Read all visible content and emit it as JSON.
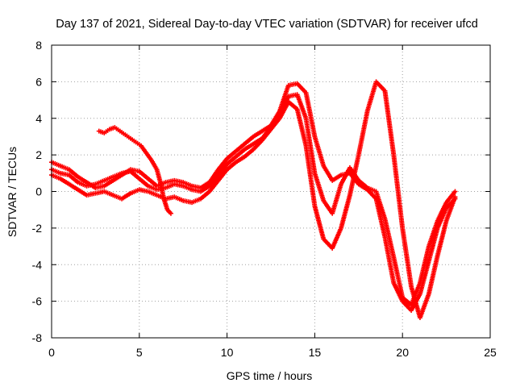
{
  "chart_data": {
    "type": "scatter",
    "title": "Day 137 of 2021, Sidereal Day-to-day VTEC variation (SDTVAR) for receiver ufcd",
    "xlabel": "GPS time / hours",
    "ylabel": "SDTVAR / TECUs",
    "xlim": [
      0,
      25
    ],
    "ylim": [
      -8,
      8
    ],
    "xticks": [
      0,
      5,
      10,
      15,
      20,
      25
    ],
    "yticks": [
      -8,
      -6,
      -4,
      -2,
      0,
      2,
      4,
      6,
      8
    ],
    "grid": true,
    "marker": "+",
    "color": "#ff0000",
    "series": [
      {
        "x": [
          0.0,
          0.5,
          1.0,
          1.5,
          2.0,
          2.5,
          3.0,
          3.5,
          4.0,
          4.5,
          5.0,
          5.5,
          6.0,
          6.5,
          7.0,
          7.5,
          8.0,
          8.5,
          9.0,
          9.5,
          10.0,
          10.5,
          11.0,
          11.5,
          12.0,
          12.5,
          13.0,
          13.5,
          14.0,
          14.5,
          15.0,
          15.5,
          16.0,
          16.5,
          17.0,
          17.5,
          18.0,
          18.5,
          19.0,
          19.5,
          20.0,
          20.5,
          21.0,
          21.5,
          22.0,
          22.5,
          23.0
        ],
        "y": [
          1.6,
          1.4,
          1.2,
          0.8,
          0.5,
          0.2,
          0.3,
          0.6,
          0.9,
          1.2,
          1.1,
          0.7,
          0.3,
          0.5,
          0.6,
          0.5,
          0.3,
          0.2,
          0.5,
          1.2,
          1.8,
          2.2,
          2.6,
          3.0,
          3.3,
          3.6,
          4.4,
          5.8,
          5.9,
          5.4,
          3.0,
          1.4,
          0.6,
          0.9,
          1.0,
          0.4,
          0.1,
          -0.4,
          -2.5,
          -5.0,
          -6.0,
          -6.5,
          -5.6,
          -3.8,
          -2.0,
          -0.9,
          -0.4
        ]
      },
      {
        "x": [
          0.0,
          0.5,
          1.0,
          1.5,
          2.0,
          2.5,
          3.0,
          3.5,
          4.0,
          4.5,
          5.0,
          5.5,
          6.0,
          6.5,
          7.0,
          7.5,
          8.0,
          8.5,
          9.0,
          9.5,
          10.0,
          10.5,
          11.0,
          11.5,
          12.0,
          12.5,
          13.0,
          13.5,
          14.0,
          14.5,
          15.0,
          15.5,
          16.0,
          16.5,
          17.0,
          17.5,
          18.0,
          18.5,
          19.0,
          19.5,
          20.0,
          20.5,
          21.0,
          21.5,
          22.0,
          22.5,
          23.0
        ],
        "y": [
          0.9,
          0.7,
          0.4,
          0.1,
          -0.2,
          -0.1,
          0.0,
          -0.2,
          -0.4,
          -0.1,
          0.1,
          0.0,
          -0.2,
          -0.4,
          -0.3,
          -0.5,
          -0.6,
          -0.4,
          0.0,
          0.6,
          1.2,
          1.6,
          1.9,
          2.3,
          2.8,
          3.4,
          4.0,
          4.9,
          4.5,
          2.5,
          -0.8,
          -2.6,
          -3.1,
          -2.0,
          -0.2,
          2.0,
          4.4,
          6.0,
          5.5,
          2.0,
          -2.0,
          -5.2,
          -6.9,
          -5.6,
          -3.5,
          -1.6,
          -0.3
        ]
      },
      {
        "x": [
          0.0,
          0.5,
          1.0,
          1.5,
          2.0,
          2.5,
          3.0,
          3.5,
          4.0,
          4.5,
          5.0,
          5.5,
          6.0,
          6.5,
          7.0,
          7.5,
          8.0,
          8.5,
          9.0,
          9.5,
          10.0,
          10.5,
          11.0,
          11.5,
          12.0,
          12.5,
          13.0,
          13.5,
          14.0,
          14.5,
          15.0,
          15.5,
          16.0,
          16.5,
          17.0,
          17.5,
          18.0,
          18.5,
          19.0,
          19.5,
          20.0,
          20.5,
          21.0,
          21.5,
          22.0,
          22.5,
          23.0
        ],
        "y": [
          1.2,
          1.0,
          0.9,
          0.5,
          0.3,
          0.4,
          0.6,
          0.8,
          1.0,
          1.1,
          0.7,
          0.3,
          0.1,
          0.2,
          0.4,
          0.3,
          0.1,
          0.0,
          0.3,
          0.9,
          1.5,
          1.9,
          2.3,
          2.6,
          2.9,
          3.5,
          4.2,
          5.2,
          5.3,
          4.0,
          1.0,
          -0.5,
          -1.2,
          0.4,
          1.3,
          0.6,
          0.2,
          0.0,
          -1.5,
          -3.6,
          -5.8,
          -6.2,
          -5.0,
          -3.0,
          -1.6,
          -0.6,
          0.0
        ]
      },
      {
        "x": [
          2.7,
          3.0,
          3.3,
          3.6,
          3.9,
          4.2,
          4.5,
          4.8,
          5.1,
          5.4,
          5.7,
          6.0,
          6.2,
          6.4,
          6.6,
          6.8
        ],
        "y": [
          3.3,
          3.2,
          3.4,
          3.5,
          3.3,
          3.1,
          2.9,
          2.7,
          2.5,
          2.1,
          1.7,
          1.2,
          0.5,
          -0.4,
          -1.0,
          -1.2
        ]
      }
    ]
  }
}
